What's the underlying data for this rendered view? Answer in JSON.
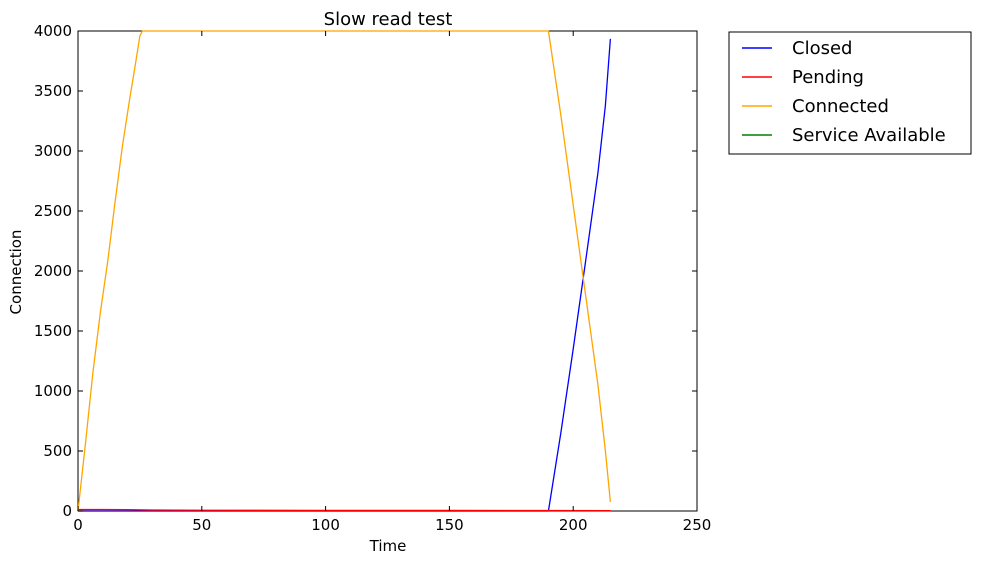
{
  "chart_data": {
    "type": "line",
    "title": "Slow read test",
    "xlabel": "Time",
    "ylabel": "Connection",
    "xlim": [
      0,
      250
    ],
    "ylim": [
      0,
      4000
    ],
    "xticks": [
      0,
      50,
      100,
      150,
      200,
      250
    ],
    "yticks": [
      0,
      500,
      1000,
      1500,
      2000,
      2500,
      3000,
      3500,
      4000
    ],
    "xtick_labels": [
      "0",
      "50",
      "100",
      "150",
      "200",
      "250"
    ],
    "ytick_labels": [
      "0",
      "500",
      "1000",
      "1500",
      "2000",
      "2500",
      "3000",
      "3500",
      "4000"
    ],
    "grid": false,
    "legend_position": "outside-top-right",
    "series": [
      {
        "name": "Closed",
        "color": "#0000ff",
        "x": [
          0,
          190,
          195,
          200,
          205,
          210,
          213,
          215
        ],
        "y": [
          0,
          0,
          650,
          1350,
          2080,
          2820,
          3380,
          3930
        ]
      },
      {
        "name": "Pending",
        "color": "#ff0000",
        "x": [
          0,
          10,
          20,
          30,
          50,
          100,
          150,
          190,
          215
        ],
        "y": [
          12,
          12,
          11,
          8,
          6,
          5,
          5,
          4,
          3
        ]
      },
      {
        "name": "Connected",
        "color": "#ffa500",
        "x": [
          0,
          3,
          6,
          9,
          12,
          15,
          18,
          21,
          23,
          25,
          26,
          190,
          192,
          195,
          200,
          205,
          210,
          213,
          215
        ],
        "y": [
          0,
          560,
          1150,
          1650,
          2080,
          2580,
          3050,
          3450,
          3700,
          3960,
          4000,
          4000,
          3720,
          3300,
          2550,
          1800,
          1050,
          500,
          80
        ]
      },
      {
        "name": "Service Available",
        "color": "#008000",
        "x": [],
        "y": []
      }
    ]
  }
}
